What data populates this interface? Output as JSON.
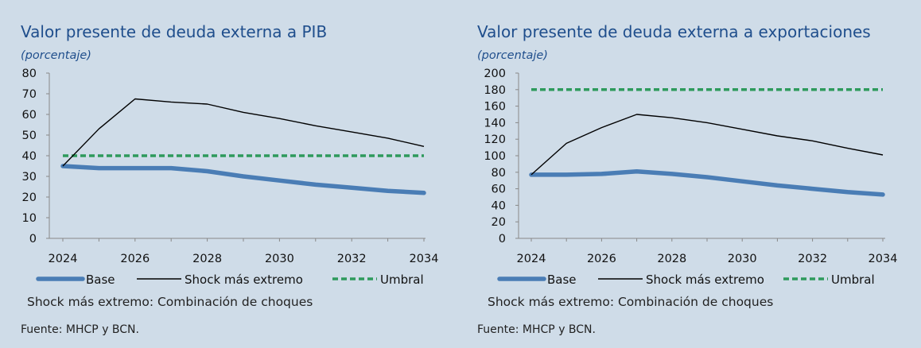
{
  "source_text": "Fuente: MHCP y BCN.",
  "note_text": "Shock más extremo:  Combinación  de choques",
  "colors": {
    "base": "#4a7db5",
    "shock": "#000000",
    "umbral": "#2e9a5c",
    "title": "#1f4e8c",
    "background": "#cfdce8"
  },
  "charts": [
    {
      "title": "Valor presente de deuda externa a PIB",
      "unit": "(porcentaje)"
    },
    {
      "title": "Valor presente de deuda externa a exportaciones",
      "unit": "(porcentaje)"
    }
  ],
  "chart_data": [
    {
      "type": "line",
      "title": "Valor presente de deuda externa a PIB",
      "ylabel": "(porcentaje)",
      "ylim": [
        0,
        80
      ],
      "yticks": [
        0,
        10,
        20,
        30,
        40,
        50,
        60,
        70,
        80
      ],
      "xticks": [
        2024,
        2026,
        2028,
        2030,
        2032,
        2034
      ],
      "x": [
        2024,
        2025,
        2026,
        2027,
        2028,
        2029,
        2030,
        2031,
        2032,
        2033,
        2034
      ],
      "series": [
        {
          "name": "Base",
          "values": [
            35,
            34,
            34,
            34,
            32.5,
            30,
            28,
            26,
            24.5,
            23,
            22
          ]
        },
        {
          "name": "Shock más extremo",
          "values": [
            35,
            53,
            67.5,
            66,
            65,
            61,
            58,
            54.5,
            51.5,
            48.5,
            44.5
          ]
        },
        {
          "name": "Umbral",
          "values": [
            40,
            40,
            40,
            40,
            40,
            40,
            40,
            40,
            40,
            40,
            40
          ]
        }
      ],
      "legend_position": "bottom",
      "grid": false
    },
    {
      "type": "line",
      "title": "Valor presente de deuda externa a exportaciones",
      "ylabel": "(porcentaje)",
      "ylim": [
        0,
        200
      ],
      "yticks": [
        0,
        20,
        40,
        60,
        80,
        100,
        120,
        140,
        160,
        180,
        200
      ],
      "xticks": [
        2024,
        2026,
        2028,
        2030,
        2032,
        2034
      ],
      "x": [
        2024,
        2025,
        2026,
        2027,
        2028,
        2029,
        2030,
        2031,
        2032,
        2033,
        2034
      ],
      "series": [
        {
          "name": "Base",
          "values": [
            77,
            77,
            78,
            81,
            78,
            74,
            69,
            64,
            60,
            56,
            53
          ]
        },
        {
          "name": "Shock más extremo",
          "values": [
            77,
            115,
            134,
            150,
            146,
            140,
            132,
            124,
            118,
            109,
            101
          ]
        },
        {
          "name": "Umbral",
          "values": [
            180,
            180,
            180,
            180,
            180,
            180,
            180,
            180,
            180,
            180,
            180
          ]
        }
      ],
      "legend_position": "bottom",
      "grid": false
    }
  ]
}
